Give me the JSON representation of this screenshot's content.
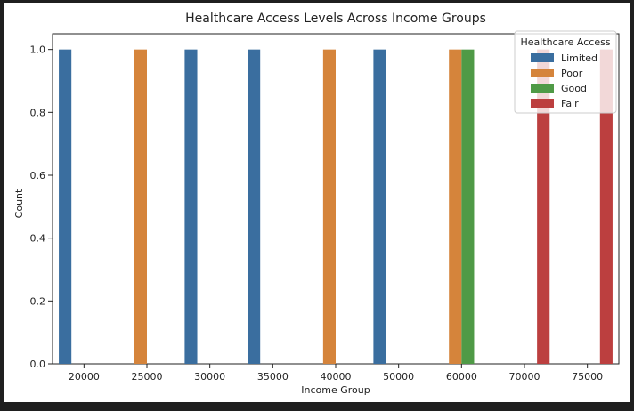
{
  "chart_data": {
    "type": "bar",
    "title": "Healthcare Access Levels Across Income Groups",
    "xlabel": "Income Group",
    "ylabel": "Count",
    "ylim": [
      0,
      1.05
    ],
    "yticks": [
      "0.0",
      "0.2",
      "0.4",
      "0.6",
      "0.8",
      "1.0"
    ],
    "categories": [
      "20000",
      "25000",
      "30000",
      "35000",
      "40000",
      "50000",
      "60000",
      "70000",
      "75000"
    ],
    "series": [
      {
        "name": "Limited",
        "color": "#3a6e9f",
        "values": [
          1,
          0,
          1,
          1,
          0,
          1,
          0,
          0,
          0
        ]
      },
      {
        "name": "Poor",
        "color": "#d5843b",
        "values": [
          0,
          1,
          0,
          0,
          1,
          0,
          1,
          0,
          0
        ]
      },
      {
        "name": "Good",
        "color": "#4f9a46",
        "values": [
          0,
          0,
          0,
          0,
          0,
          0,
          1,
          0,
          0
        ]
      },
      {
        "name": "Fair",
        "color": "#bc3f3f",
        "values": [
          0,
          0,
          0,
          0,
          0,
          0,
          0,
          1,
          1
        ]
      }
    ],
    "legend": {
      "title": "Healthcare Access",
      "position": "top-right"
    },
    "grid": false
  }
}
